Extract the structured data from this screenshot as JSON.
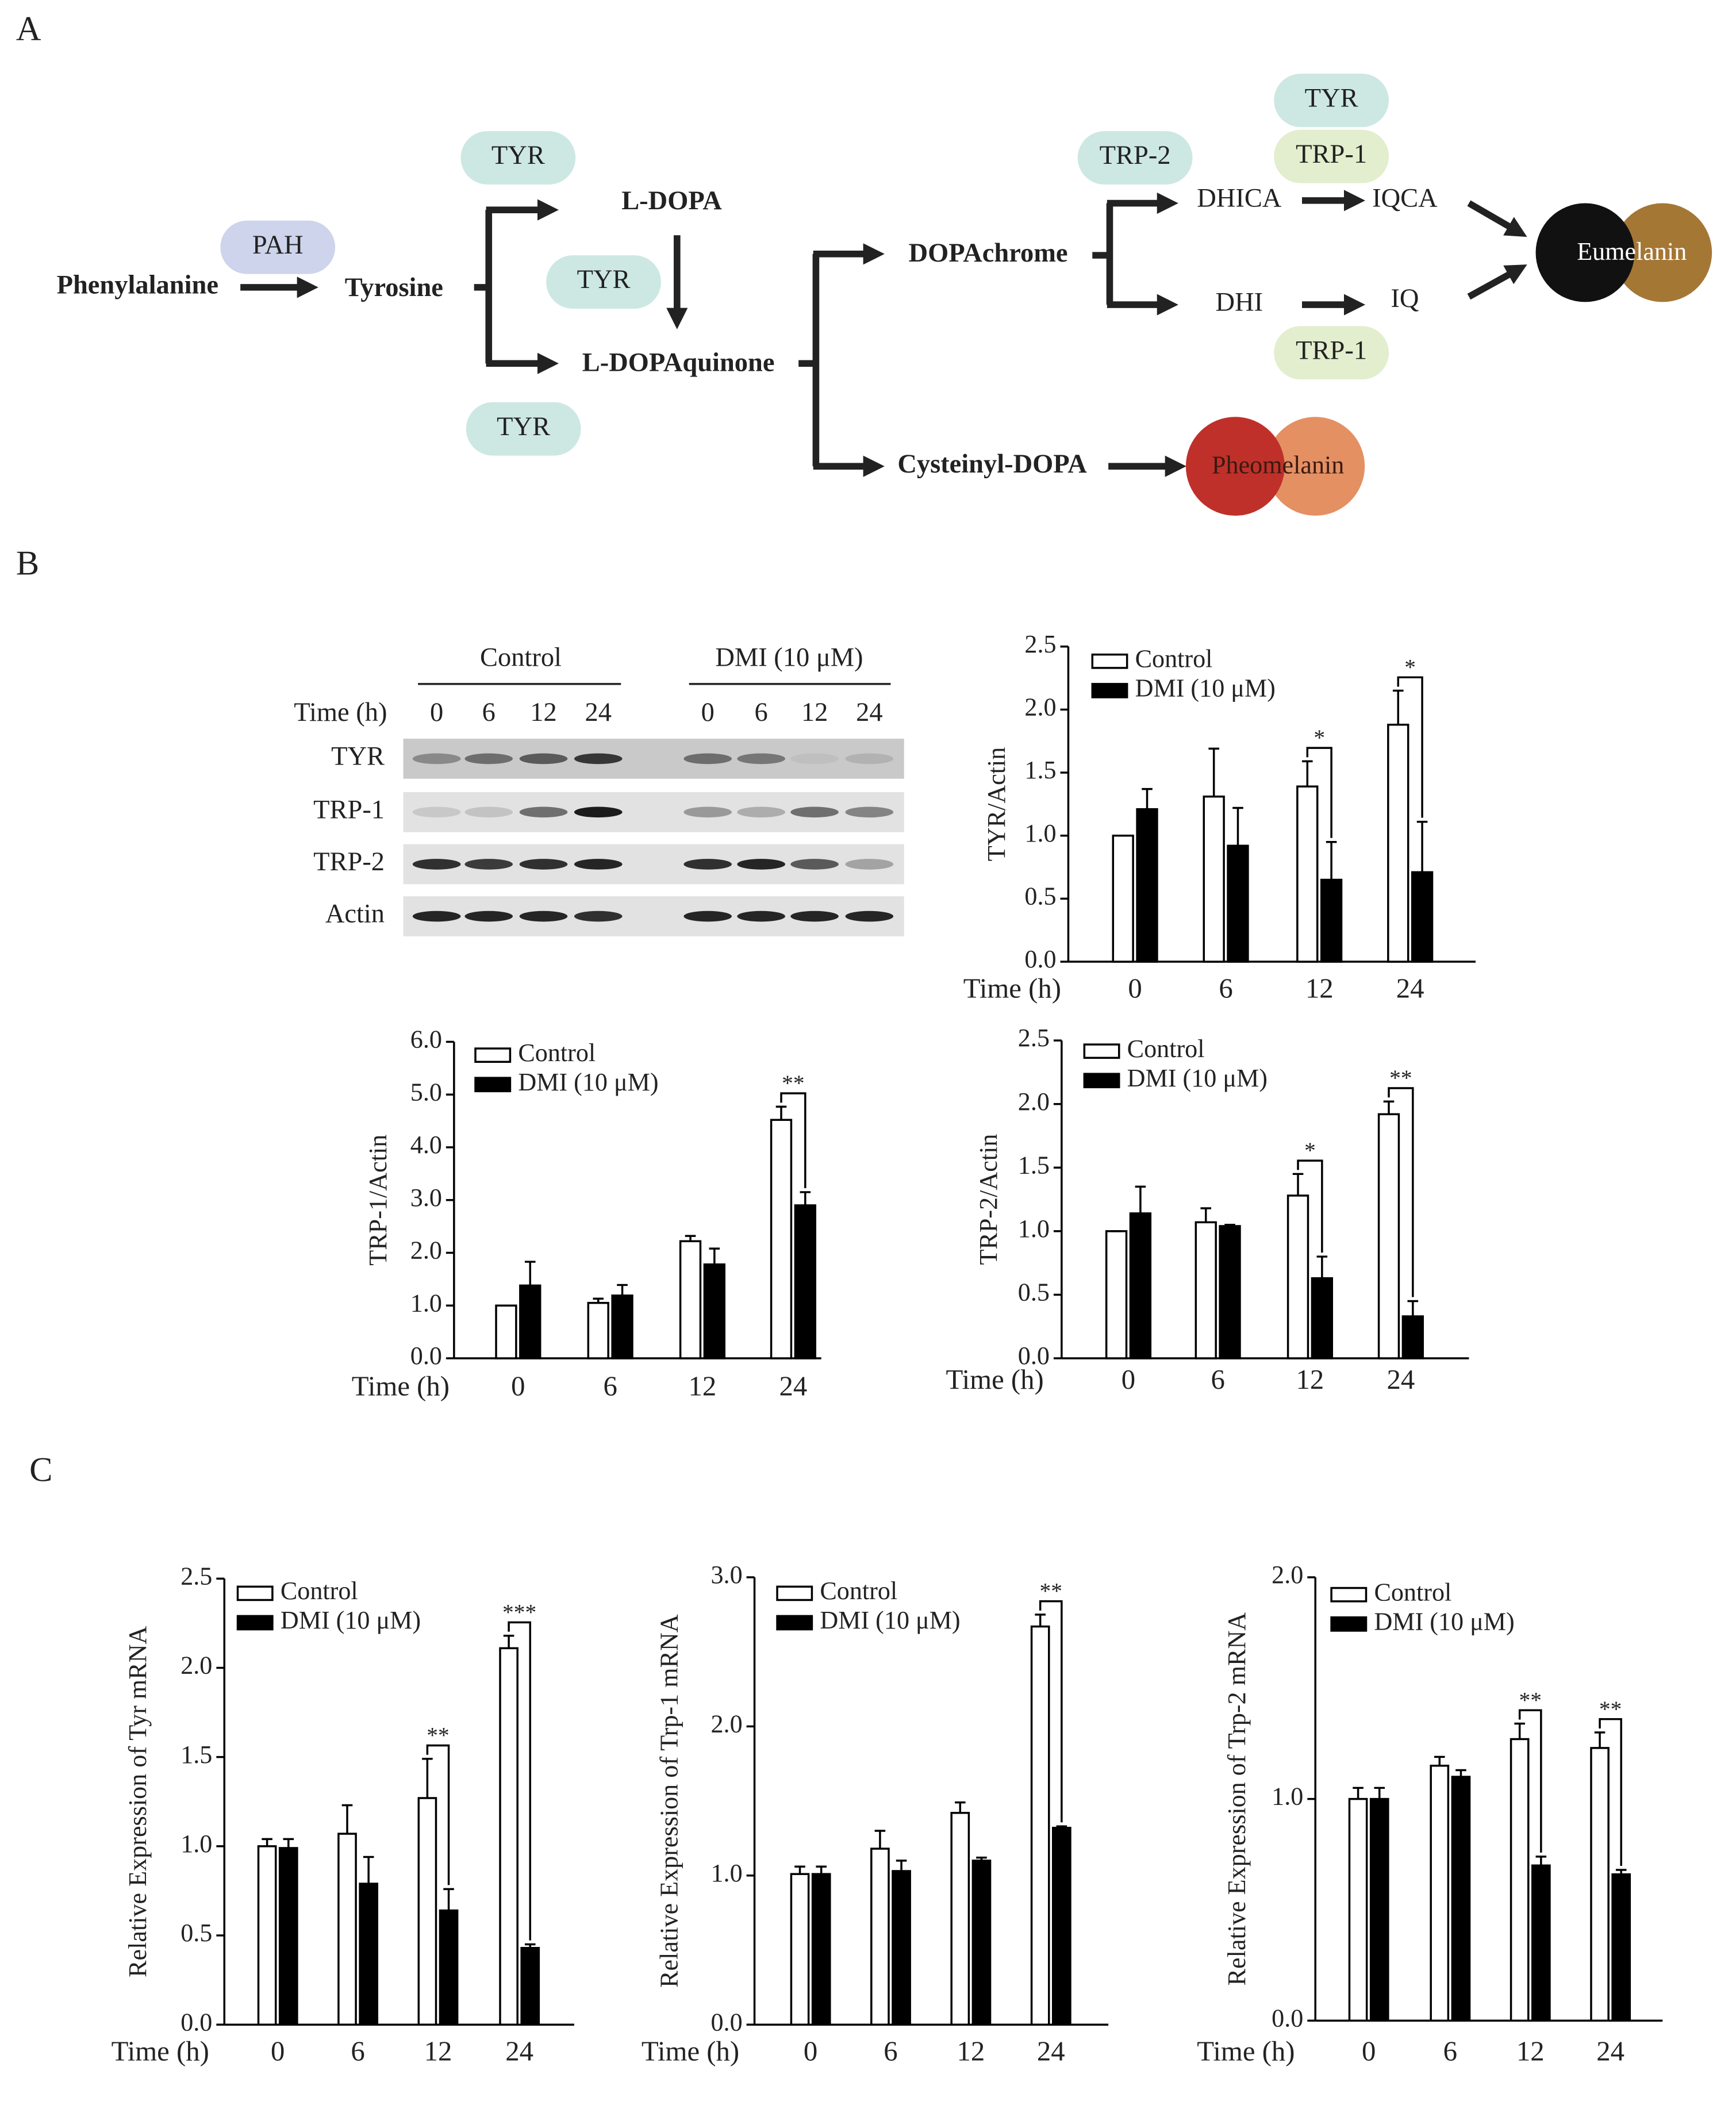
{
  "panels": {
    "a": "A",
    "b": "B",
    "c": "C"
  },
  "pathway": {
    "nodes": [
      "Phenylalanine",
      "Tyrosine",
      "L-DOPA",
      "L-DOPAquinone",
      "DOPAchrome",
      "Cysteinyl-DOPA",
      "DHICA",
      "IQCA",
      "DHI",
      "IQ"
    ],
    "enzymes": [
      "PAH",
      "TYR",
      "TYR",
      "TYR",
      "TRP-2",
      "TYR",
      "TRP-1",
      "TRP-1"
    ],
    "pigments": [
      "Eumelanin",
      "Pheomelanin"
    ]
  },
  "blot": {
    "groups": [
      "Control",
      "DMI (10 μM)"
    ],
    "time_label": "Time (h)",
    "lanes": [
      "0",
      "6",
      "12",
      "24"
    ],
    "proteins": [
      "TYR",
      "TRP-1",
      "TRP-2",
      "Actin"
    ]
  },
  "chart_data": [
    {
      "type": "bar",
      "y_label": "TYR/Actin",
      "x_label": "Time (h)",
      "categories": [
        "0",
        "6",
        "12",
        "24"
      ],
      "series": [
        {
          "name": "Control",
          "color": "#ffffff",
          "values": [
            1.0,
            1.31,
            1.39,
            1.88
          ],
          "errors": [
            0,
            0.38,
            0.2,
            0.27
          ]
        },
        {
          "name": "DMI (10 μM)",
          "color": "#000000",
          "values": [
            1.21,
            0.92,
            0.65,
            0.71
          ],
          "errors": [
            0.16,
            0.3,
            0.3,
            0.4
          ]
        }
      ],
      "significance": [
        null,
        null,
        "*",
        "*"
      ],
      "ylim": [
        0,
        2.5
      ],
      "yticks": [
        {
          "value": 0,
          "label": "0.0"
        },
        {
          "value": 0.5,
          "label": "0.5"
        },
        {
          "value": 1,
          "label": "1.0"
        },
        {
          "value": 1.5,
          "label": "1.5"
        },
        {
          "value": 2,
          "label": "2.0"
        },
        {
          "value": 2.5,
          "label": "2.5"
        }
      ]
    },
    {
      "type": "bar",
      "y_label": "TRP-1/Actin",
      "x_label": "Time (h)",
      "categories": [
        "0",
        "6",
        "12",
        "24"
      ],
      "series": [
        {
          "name": "Control",
          "color": "#ffffff",
          "values": [
            1.0,
            1.05,
            2.22,
            4.52
          ],
          "errors": [
            0,
            0.08,
            0.1,
            0.25
          ]
        },
        {
          "name": "DMI (10 μM)",
          "color": "#000000",
          "values": [
            1.38,
            1.19,
            1.78,
            2.9
          ],
          "errors": [
            0.45,
            0.2,
            0.3,
            0.25
          ]
        }
      ],
      "significance": [
        null,
        null,
        null,
        "**"
      ],
      "ylim": [
        0,
        6
      ],
      "yticks": [
        {
          "value": 0,
          "label": "0.0"
        },
        {
          "value": 1,
          "label": "1.0"
        },
        {
          "value": 2,
          "label": "2.0"
        },
        {
          "value": 3,
          "label": "3.0"
        },
        {
          "value": 4,
          "label": "4.0"
        },
        {
          "value": 5,
          "label": "5.0"
        },
        {
          "value": 6,
          "label": "6.0"
        }
      ]
    },
    {
      "type": "bar",
      "y_label": "TRP-2/Actin",
      "x_label": "Time (h)",
      "categories": [
        "0",
        "6",
        "12",
        "24"
      ],
      "series": [
        {
          "name": "Control",
          "color": "#ffffff",
          "values": [
            1.0,
            1.07,
            1.28,
            1.92
          ],
          "errors": [
            0,
            0.11,
            0.17,
            0.1
          ]
        },
        {
          "name": "DMI (10 μM)",
          "color": "#000000",
          "values": [
            1.14,
            1.04,
            0.63,
            0.33
          ],
          "errors": [
            0.21,
            0.01,
            0.17,
            0.12
          ]
        }
      ],
      "significance": [
        null,
        null,
        "*",
        "**"
      ],
      "ylim": [
        0,
        2.5
      ],
      "yticks": [
        {
          "value": 0,
          "label": "0.0"
        },
        {
          "value": 0.5,
          "label": "0.5"
        },
        {
          "value": 1,
          "label": "1.0"
        },
        {
          "value": 1.5,
          "label": "1.5"
        },
        {
          "value": 2,
          "label": "2.0"
        },
        {
          "value": 2.5,
          "label": "2.5"
        }
      ]
    },
    {
      "type": "bar",
      "y_label": "Relative Expression of  Tyr mRNA",
      "x_label": "Time (h)",
      "categories": [
        "0",
        "6",
        "12",
        "24"
      ],
      "series": [
        {
          "name": "Control",
          "color": "#ffffff",
          "values": [
            1.0,
            1.07,
            1.27,
            2.11
          ],
          "errors": [
            0.04,
            0.16,
            0.22,
            0.07
          ]
        },
        {
          "name": "DMI (10 μM)",
          "color": "#000000",
          "values": [
            0.99,
            0.79,
            0.64,
            0.43
          ],
          "errors": [
            0.05,
            0.15,
            0.12,
            0.02
          ]
        }
      ],
      "significance": [
        null,
        null,
        "**",
        "***"
      ],
      "ylim": [
        0,
        2.5
      ],
      "yticks": [
        {
          "value": 0,
          "label": "0.0"
        },
        {
          "value": 0.5,
          "label": "0.5"
        },
        {
          "value": 1,
          "label": "1.0"
        },
        {
          "value": 1.5,
          "label": "1.5"
        },
        {
          "value": 2,
          "label": "2.0"
        },
        {
          "value": 2.5,
          "label": "2.5"
        }
      ]
    },
    {
      "type": "bar",
      "y_label": "Relative Expression of  Trp-1 mRNA",
      "x_label": "Time (h)",
      "categories": [
        "0",
        "6",
        "12",
        "24"
      ],
      "series": [
        {
          "name": "Control",
          "color": "#ffffff",
          "values": [
            1.01,
            1.18,
            1.42,
            2.67
          ],
          "errors": [
            0.05,
            0.12,
            0.07,
            0.08
          ]
        },
        {
          "name": "DMI (10 μM)",
          "color": "#000000",
          "values": [
            1.01,
            1.03,
            1.1,
            1.32
          ],
          "errors": [
            0.05,
            0.07,
            0.02,
            0.01
          ]
        }
      ],
      "significance": [
        null,
        null,
        null,
        "**"
      ],
      "ylim": [
        0,
        3
      ],
      "yticks": [
        {
          "value": 0,
          "label": "0.0"
        },
        {
          "value": 1,
          "label": "1.0"
        },
        {
          "value": 2,
          "label": "2.0"
        },
        {
          "value": 3,
          "label": "3.0"
        }
      ]
    },
    {
      "type": "bar",
      "y_label": "Relative  Expression of  Trp-2 mRNA",
      "x_label": "Time (h)",
      "categories": [
        "0",
        "6",
        "12",
        "24"
      ],
      "series": [
        {
          "name": "Control",
          "color": "#ffffff",
          "values": [
            1.0,
            1.15,
            1.27,
            1.23
          ],
          "errors": [
            0.05,
            0.04,
            0.07,
            0.07
          ]
        },
        {
          "name": "DMI (10 μM)",
          "color": "#000000",
          "values": [
            1.0,
            1.1,
            0.7,
            0.66
          ],
          "errors": [
            0.05,
            0.03,
            0.04,
            0.02
          ]
        }
      ],
      "significance": [
        null,
        null,
        "**",
        "**"
      ],
      "ylim": [
        0,
        2
      ],
      "yticks": [
        {
          "value": 0,
          "label": "0.0"
        },
        {
          "value": 1,
          "label": "1.0"
        },
        {
          "value": 2,
          "label": "2.0"
        }
      ]
    }
  ]
}
